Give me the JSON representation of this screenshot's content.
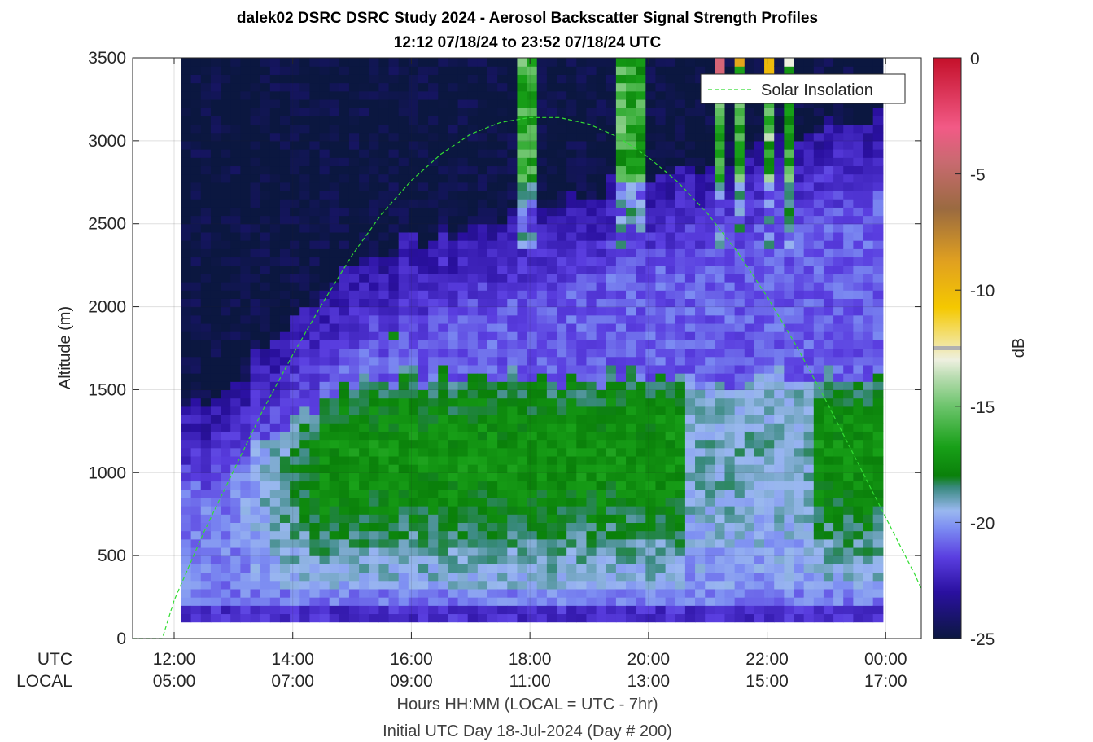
{
  "chart_data": {
    "type": "heatmap",
    "title": "dalek02 DSRC DSRC Study 2024 - Aerosol Backscatter Signal Strength Profiles",
    "subtitle": "12:12 07/18/24 to 23:52 07/18/24  UTC",
    "ylabel": "Altitude (m)",
    "xlabel": "Hours HH:MM  (LOCAL = UTC - 7hr)",
    "xlabel2": "Initial UTC Day 18-Jul-2024 (Day # 200)",
    "x_row_labels": [
      "UTC",
      "LOCAL"
    ],
    "x_ticks_utc": [
      "12:00",
      "14:00",
      "16:00",
      "18:00",
      "20:00",
      "22:00",
      "00:00"
    ],
    "x_ticks_local": [
      "05:00",
      "07:00",
      "09:00",
      "11:00",
      "13:00",
      "15:00",
      "17:00"
    ],
    "x_tick_hours": [
      12,
      14,
      16,
      18,
      20,
      22,
      24
    ],
    "xlim_hours": [
      11.3,
      24.6
    ],
    "ylim": [
      0,
      3500
    ],
    "y_ticks": [
      "0",
      "500",
      "1000",
      "1500",
      "2000",
      "2500",
      "3000",
      "3500"
    ],
    "y_tick_values": [
      0,
      500,
      1000,
      1500,
      2000,
      2500,
      3000,
      3500
    ],
    "colorbar": {
      "label": "dB",
      "range": [
        -25,
        0
      ],
      "ticks": [
        "0",
        "-5",
        "-10",
        "-15",
        "-20",
        "-25"
      ],
      "tick_values": [
        0,
        -5,
        -10,
        -15,
        -20,
        -25
      ],
      "marker_value": -12.5
    },
    "heatmap": {
      "time_start_hours": 12.2,
      "time_step_hours": 0.1667,
      "columns": 71,
      "alt_min": 100,
      "alt_max": 3500,
      "alt_step": 50,
      "description_values_db": "signal strength in dB; layers: surface -21, boundary layer -17 to -18 between 800 and 1400 m, clouds -16 to -13 above 2800 m near 18:00, 19:45-20:00, 21:00-22:30"
    },
    "series": [
      {
        "name": "Solar Insolation",
        "style": "dashed",
        "color": "#33dd33",
        "x": [
          11.3,
          11.8,
          12.0,
          12.5,
          13.0,
          13.5,
          14.0,
          14.5,
          15.0,
          15.5,
          16.0,
          16.5,
          17.0,
          17.5,
          18.0,
          18.5,
          19.0,
          19.5,
          20.0,
          20.5,
          21.0,
          21.5,
          22.0,
          22.5,
          23.0,
          23.5,
          24.0,
          24.5,
          24.6
        ],
        "y": [
          0,
          0,
          230,
          640,
          1010,
          1380,
          1710,
          2020,
          2310,
          2560,
          2760,
          2920,
          3040,
          3110,
          3140,
          3140,
          3100,
          3020,
          2900,
          2750,
          2560,
          2330,
          2060,
          1760,
          1430,
          1080,
          730,
          380,
          300
        ]
      }
    ],
    "legend": {
      "position": "top-right",
      "entries": [
        "Solar Insolation"
      ]
    }
  },
  "colors": {
    "night": "#0b1740",
    "purple": "#3c17c8",
    "lightblue": "#84a6f5",
    "green": "#0b8f0b",
    "lightgreen": "#5ec25e",
    "white": "#e8eedc",
    "yellow": "#f5c800",
    "orange": "#e29a1a",
    "brown": "#8a5a3a",
    "pink": "#f05a86",
    "red": "#c8102e",
    "solar": "#33dd33"
  }
}
